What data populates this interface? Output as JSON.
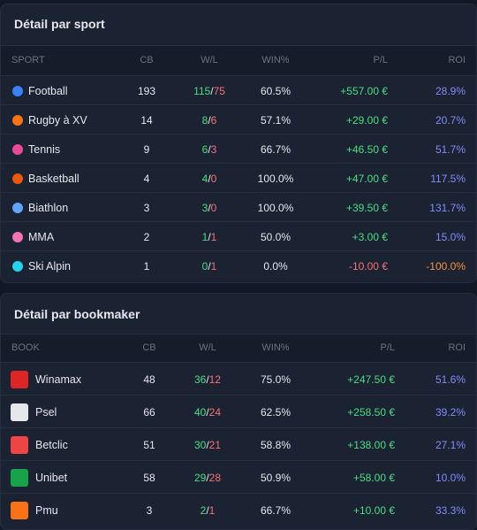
{
  "sections": [
    {
      "title": "Détail par sport",
      "wl_separator": "/",
      "columns": [
        "SPORT",
        "CB",
        "W/L",
        "WIN%",
        "P/L",
        "ROI"
      ],
      "rows": [
        [
          "Football",
          "193",
          "115",
          "75",
          "60.5%",
          "+557.00 €",
          "28.9%"
        ],
        [
          "Rugby à XV",
          "14",
          "8",
          "6",
          "57.1%",
          "+29.00 €",
          "20.7%"
        ],
        [
          "Tennis",
          "9",
          "6",
          "3",
          "66.7%",
          "+46.50 €",
          "51.7%"
        ],
        [
          "Basketball",
          "4",
          "4",
          "0",
          "100.0%",
          "+47.00 €",
          "117.5%"
        ],
        [
          "Biathlon",
          "3",
          "3",
          "0",
          "100.0%",
          "+39.50 €",
          "131.7%"
        ],
        [
          "MMA",
          "2",
          "1",
          "1",
          "50.0%",
          "+3.00 €",
          "15.0%"
        ],
        [
          "Ski Alpin",
          "1",
          "0",
          "1",
          "0.0%",
          "-10.00 €",
          "-100.0%"
        ]
      ]
    },
    {
      "title": "Détail par bookmaker",
      "wl_separator": "/",
      "columns": [
        "BOOK",
        "CB",
        "W/L",
        "WIN%",
        "P/L",
        "ROI"
      ],
      "rows": [
        [
          "Winamax",
          "48",
          "36",
          "12",
          "75.0%",
          "+247.50 €",
          "51.6%"
        ],
        [
          "Psel",
          "66",
          "40",
          "24",
          "62.5%",
          "+258.50 €",
          "39.2%"
        ],
        [
          "Betclic",
          "51",
          "30",
          "21",
          "58.8%",
          "+138.00 €",
          "27.1%"
        ],
        [
          "Unibet",
          "58",
          "29",
          "28",
          "50.9%",
          "+58.00 €",
          "10.0%"
        ],
        [
          "Pmu",
          "3",
          "2",
          "1",
          "66.7%",
          "+10.00 €",
          "33.3%"
        ]
      ]
    }
  ]
}
